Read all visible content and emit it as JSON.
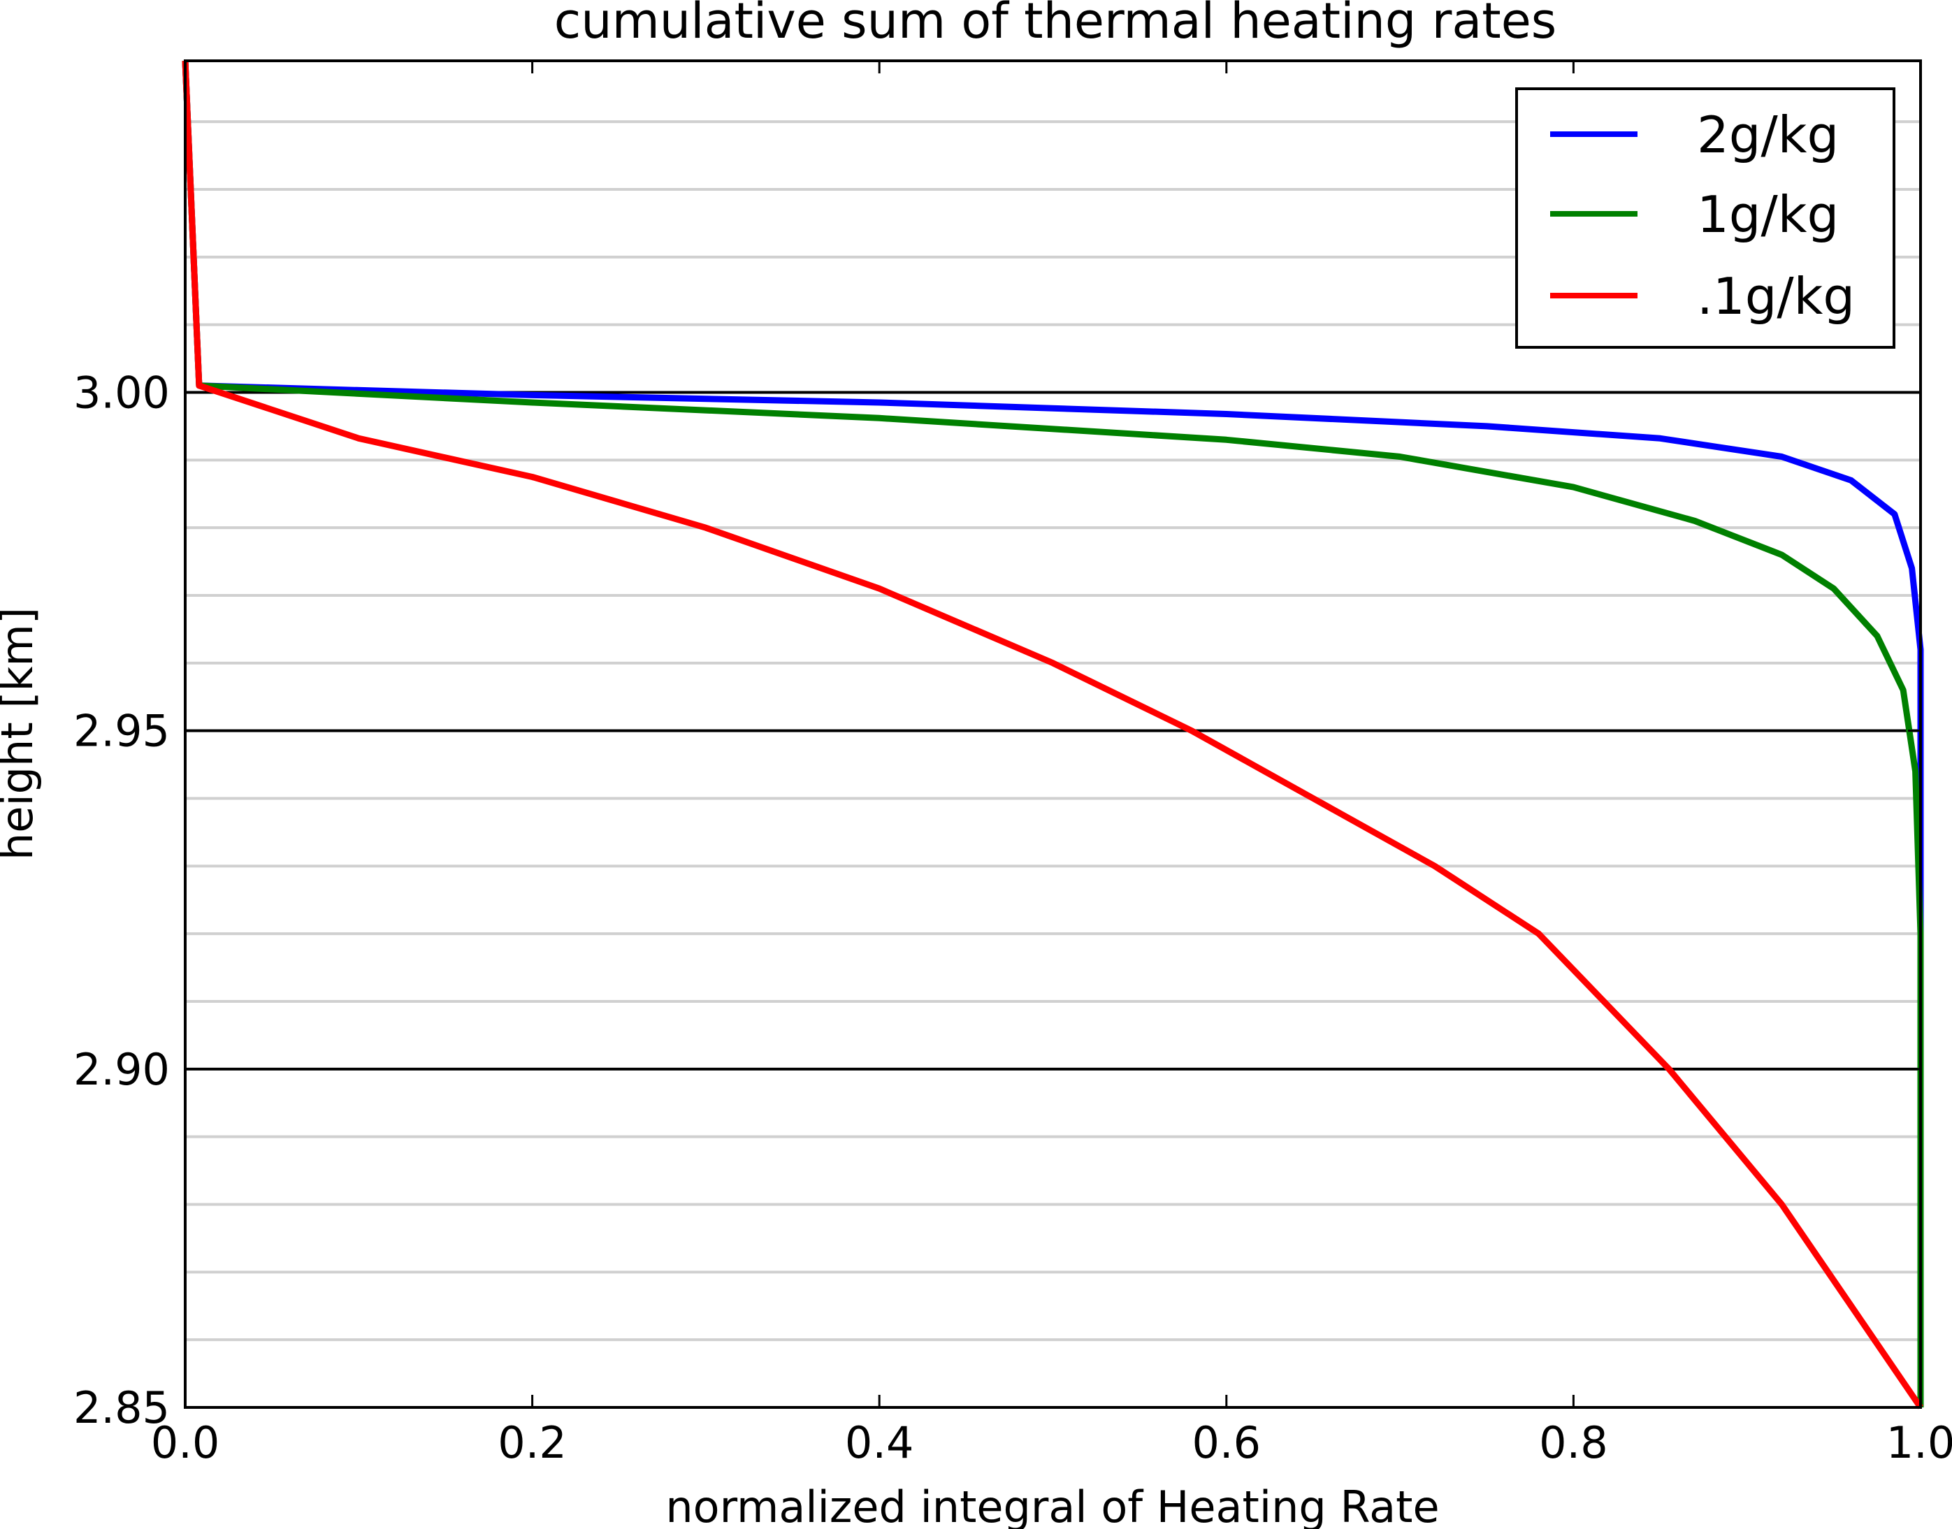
{
  "chart_data": {
    "type": "line",
    "title": "cumulative sum of thermal heating rates",
    "xlabel": "normalized integral of Heating Rate",
    "ylabel": "height [km]",
    "xlim": [
      0.0,
      1.0
    ],
    "ylim": [
      2.85,
      3.049
    ],
    "xticks": [
      "0.0",
      "0.2",
      "0.4",
      "0.6",
      "0.8",
      "1.0"
    ],
    "yticks": [
      "2.85",
      "2.90",
      "2.95",
      "3.00"
    ],
    "major_hlines": [
      2.9,
      2.95,
      3.0
    ],
    "minor_hlines": [
      2.86,
      2.87,
      2.88,
      2.89,
      2.91,
      2.92,
      2.93,
      2.94,
      2.96,
      2.97,
      2.98,
      2.99,
      3.01,
      3.02,
      3.03,
      3.04
    ],
    "legend_position": "top-right",
    "series": [
      {
        "name": "2g/kg",
        "color": "#0000ff",
        "x": [
          0.0,
          0.008,
          0.2,
          0.4,
          0.6,
          0.75,
          0.85,
          0.92,
          0.96,
          0.985,
          0.995,
          1.0,
          1.0
        ],
        "y": [
          3.049,
          3.001,
          2.9996,
          2.9985,
          2.9968,
          2.995,
          2.9932,
          2.9905,
          2.987,
          2.982,
          2.974,
          2.962,
          2.85
        ]
      },
      {
        "name": "1g/kg",
        "color": "#008000",
        "x": [
          0.0,
          0.008,
          0.2,
          0.4,
          0.6,
          0.7,
          0.8,
          0.87,
          0.92,
          0.95,
          0.975,
          0.99,
          0.997,
          1.0,
          1.0
        ],
        "y": [
          3.049,
          3.001,
          2.9985,
          2.9962,
          2.993,
          2.9905,
          2.986,
          2.981,
          2.976,
          2.971,
          2.964,
          2.956,
          2.944,
          2.92,
          2.85
        ]
      },
      {
        "name": ".1g/kg",
        "color": "#ff0000",
        "x": [
          0.0,
          0.008,
          0.1,
          0.2,
          0.3,
          0.4,
          0.5,
          0.58,
          0.65,
          0.72,
          0.78,
          0.855,
          0.92,
          0.96,
          1.0
        ],
        "y": [
          3.049,
          3.001,
          2.9932,
          2.9875,
          2.98,
          2.971,
          2.96,
          2.95,
          2.94,
          2.93,
          2.92,
          2.9,
          2.88,
          2.865,
          2.85
        ]
      }
    ]
  }
}
